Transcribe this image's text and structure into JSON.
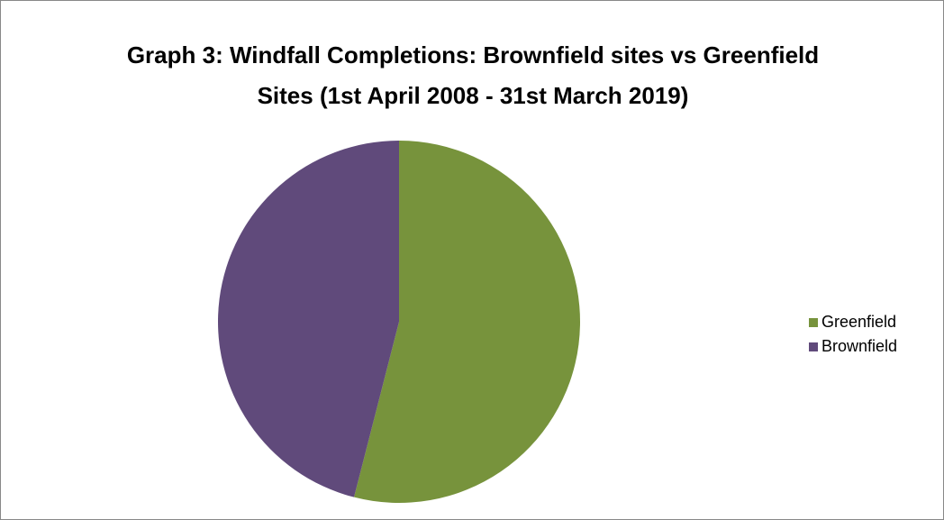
{
  "chart_data": {
    "type": "pie",
    "title": "Graph 3: Windfall Completions: Brownfield sites vs Greenfield Sites (1st April 2008 - 31st March 2019)",
    "categories": [
      "Greenfield",
      "Brownfield"
    ],
    "values": [
      54,
      46
    ],
    "colors": [
      "#77933c",
      "#604a7b"
    ],
    "legend": "right"
  }
}
